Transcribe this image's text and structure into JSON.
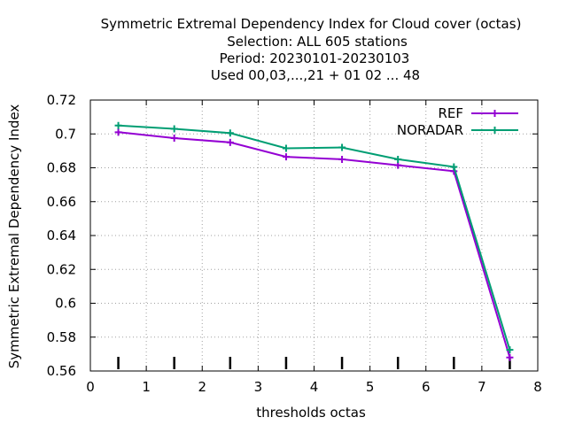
{
  "chart_data": {
    "type": "line",
    "title_lines": [
      "Symmetric Extremal Dependency Index  for Cloud cover (octas)",
      "Selection: ALL    605 stations",
      "Period: 20230101-20230103",
      "Used  00,03,...,21  + 01 02 ... 48"
    ],
    "xlabel": "thresholds octas",
    "ylabel": "Symmetric Extremal Dependency Index",
    "xlim": [
      0,
      8
    ],
    "ylim": [
      0.56,
      0.72
    ],
    "xticks": [
      "0",
      "1",
      "2",
      "3",
      "4",
      "5",
      "6",
      "7",
      "8"
    ],
    "yticks": [
      "0.56",
      "0.58",
      "0.6",
      "0.62",
      "0.64",
      "0.66",
      "0.68",
      "0.7",
      "0.72"
    ],
    "grid": true,
    "legend_position": "top-right",
    "x": [
      0.5,
      1.5,
      2.5,
      3.5,
      4.5,
      5.5,
      6.5,
      7.5
    ],
    "series": [
      {
        "name": "REF",
        "color": "#9400d3",
        "values": [
          0.701,
          0.6975,
          0.695,
          0.6865,
          0.685,
          0.6815,
          0.678,
          0.568
        ]
      },
      {
        "name": "NORADAR",
        "color": "#009e73",
        "values": [
          0.705,
          0.703,
          0.7005,
          0.6915,
          0.692,
          0.685,
          0.6805,
          0.5725
        ]
      }
    ],
    "annotations": "short vertical tick marks near the bottom at each threshold (x = 0.5 ... 7.5)"
  }
}
